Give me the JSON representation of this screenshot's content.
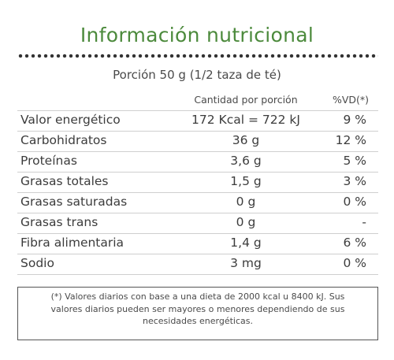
{
  "title": "Información nutricional",
  "portion": "Porción 50 g (1/2 taza de té)",
  "columns": {
    "quantity": "Cantidad por porción",
    "vd": "%VD(*)"
  },
  "rows": [
    {
      "name": "Valor energético",
      "quantity": "172 Kcal = 722 kJ",
      "vd": "9 %"
    },
    {
      "name": "Carbohidratos",
      "quantity": "36 g",
      "vd": "12 %"
    },
    {
      "name": "Proteínas",
      "quantity": "3,6 g",
      "vd": "5 %"
    },
    {
      "name": "Grasas totales",
      "quantity": "1,5 g",
      "vd": "3 %"
    },
    {
      "name": "Grasas saturadas",
      "quantity": "0 g",
      "vd": "0 %"
    },
    {
      "name": "Grasas trans",
      "quantity": "0 g",
      "vd": "-"
    },
    {
      "name": "Fibra alimentaria",
      "quantity": "1,4 g",
      "vd": "6 %"
    },
    {
      "name": "Sodio",
      "quantity": "3 mg",
      "vd": "0 %"
    }
  ],
  "footnote": {
    "line1": "(*) Valores diarios con base a una dieta de 2000 kcal u 8400 kJ. Sus",
    "line2": "valores diarios pueden ser mayores o menores dependiendo de sus",
    "line3": "necesidades energéticas."
  },
  "colors": {
    "title": "#4c8a3c",
    "text": "#3c3c3c",
    "divider": "#cfcfcf",
    "border": "#555555"
  }
}
